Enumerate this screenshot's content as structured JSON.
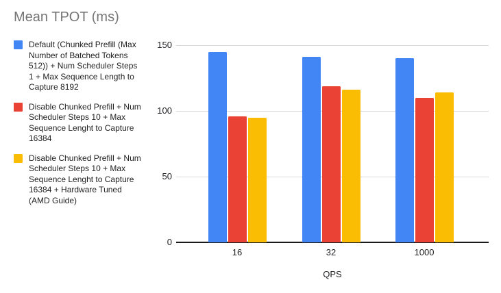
{
  "title": "Mean TPOT (ms)",
  "chart_data": {
    "type": "bar",
    "title": "Mean TPOT (ms)",
    "categories": [
      "16",
      "32",
      "1000"
    ],
    "series": [
      {
        "name": "Default (Chunked Prefill (Max Number of Batched Tokens 512)) + Num Scheduler Steps 1 + Max Sequence Length to Capture 8192",
        "color": "#4285F4",
        "values": [
          145,
          141,
          140
        ]
      },
      {
        "name": "Disable Chunked Prefill + Num Scheduler Steps 10 + Max Sequence Lenght to Capture 16384",
        "color": "#EA4335",
        "values": [
          96,
          119,
          110
        ]
      },
      {
        "name": "Disable Chunked Prefill + Num Scheduler Steps 10 + Max Sequence Lenght to Capture 16384 + Hardware Tuned (AMD Guide)",
        "color": "#FBBC04",
        "values": [
          95,
          116,
          114
        ]
      }
    ],
    "xlabel": "QPS",
    "ylabel": "",
    "ylim": [
      0,
      150
    ],
    "yticks": [
      0,
      50,
      100,
      150
    ],
    "grid": true,
    "legend_position": "left"
  },
  "colors": {
    "background": "#ffffff",
    "title_text": "#757575",
    "legend_text": "#212121",
    "axis_text": "#202124",
    "gridline": "#d9d9d9",
    "baseline": "#1a1a1a"
  }
}
